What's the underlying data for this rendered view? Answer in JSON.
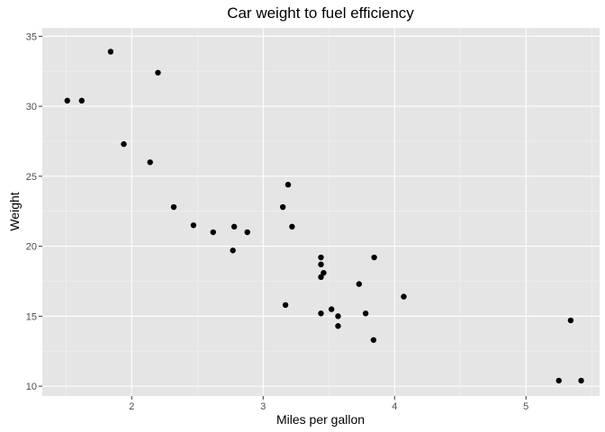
{
  "chart_data": {
    "type": "scatter",
    "title": "Car weight to fuel efficiency",
    "xlabel": "Miles per gallon",
    "ylabel": "Weight",
    "xlim": [
      1.32,
      5.56
    ],
    "ylim": [
      9.3,
      35.6
    ],
    "xticks": [
      2,
      3,
      4,
      5
    ],
    "yticks": [
      10,
      15,
      20,
      25,
      30,
      35
    ],
    "grid": true,
    "legend": "none",
    "colors": {
      "panel": "#e5e5e5",
      "grid_major": "#ffffff",
      "point": "#000000",
      "tick_label": "#4d4d4d"
    },
    "points": [
      [
        1.51,
        30.4
      ],
      [
        1.62,
        30.4
      ],
      [
        1.84,
        33.9
      ],
      [
        1.94,
        27.3
      ],
      [
        2.14,
        26.0
      ],
      [
        2.2,
        32.4
      ],
      [
        2.32,
        22.8
      ],
      [
        2.47,
        21.5
      ],
      [
        2.62,
        21.0
      ],
      [
        2.77,
        19.7
      ],
      [
        2.78,
        21.4
      ],
      [
        2.88,
        21.0
      ],
      [
        3.15,
        22.8
      ],
      [
        3.17,
        15.8
      ],
      [
        3.19,
        24.4
      ],
      [
        3.22,
        21.4
      ],
      [
        3.44,
        15.2
      ],
      [
        3.44,
        17.8
      ],
      [
        3.44,
        19.2
      ],
      [
        3.44,
        18.7
      ],
      [
        3.46,
        18.1
      ],
      [
        3.52,
        15.5
      ],
      [
        3.57,
        14.3
      ],
      [
        3.57,
        15.0
      ],
      [
        3.73,
        17.3
      ],
      [
        3.78,
        15.2
      ],
      [
        3.84,
        13.3
      ],
      [
        3.845,
        19.2
      ],
      [
        4.07,
        16.4
      ],
      [
        5.25,
        10.4
      ],
      [
        5.34,
        14.7
      ],
      [
        5.42,
        10.4
      ]
    ]
  }
}
